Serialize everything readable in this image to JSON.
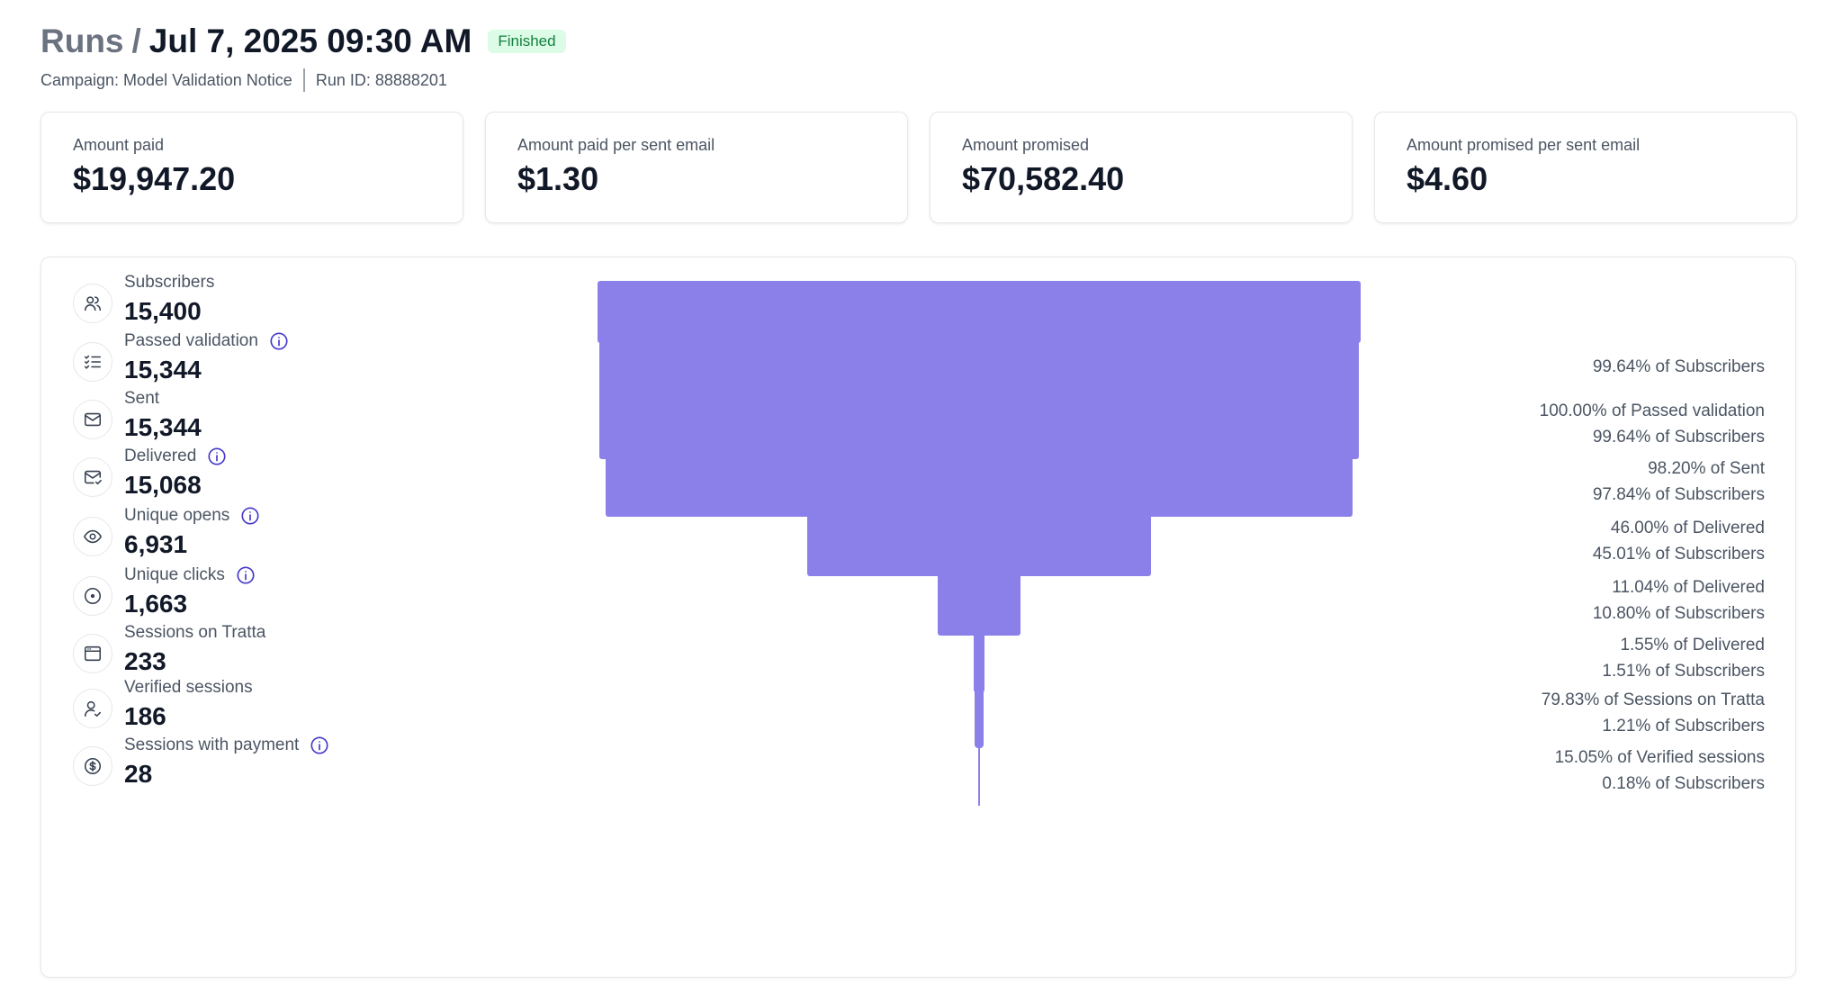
{
  "header": {
    "breadcrumb_root": "Runs",
    "breadcrumb_sep": "/",
    "title": "Jul 7, 2025 09:30 AM",
    "status_badge": "Finished",
    "campaign": "Campaign: Model Validation Notice",
    "run_id": "Run ID: 88888201"
  },
  "cards": [
    {
      "label": "Amount paid",
      "value": "$19,947.20"
    },
    {
      "label": "Amount paid per sent email",
      "value": "$1.30"
    },
    {
      "label": "Amount promised",
      "value": "$70,582.40"
    },
    {
      "label": "Amount promised per sent email",
      "value": "$4.60"
    }
  ],
  "chart_data": {
    "type": "bar",
    "categories": [
      "Subscribers",
      "Passed validation",
      "Sent",
      "Delivered",
      "Unique opens",
      "Unique clicks",
      "Sessions on Tratta",
      "Verified sessions",
      "Sessions with payment"
    ],
    "values": [
      15400,
      15344,
      15344,
      15068,
      6931,
      1663,
      233,
      186,
      28
    ]
  },
  "stages": [
    {
      "label": "Subscribers",
      "value": "15,400",
      "count": 15400,
      "icon": "users-icon",
      "info": false,
      "pct1": "",
      "pct2": ""
    },
    {
      "label": "Passed validation",
      "value": "15,344",
      "count": 15344,
      "icon": "checklist-icon",
      "info": true,
      "pct1": "99.64% of Subscribers",
      "pct2": ""
    },
    {
      "label": "Sent",
      "value": "15,344",
      "count": 15344,
      "icon": "mail-icon",
      "info": false,
      "pct1": "100.00% of Passed validation",
      "pct2": "99.64% of Subscribers"
    },
    {
      "label": "Delivered",
      "value": "15,068",
      "count": 15068,
      "icon": "mail-check-icon",
      "info": true,
      "pct1": "98.20% of Sent",
      "pct2": "97.84% of Subscribers"
    },
    {
      "label": "Unique opens",
      "value": "6,931",
      "count": 6931,
      "icon": "eye-icon",
      "info": true,
      "pct1": "46.00% of Delivered",
      "pct2": "45.01% of Subscribers"
    },
    {
      "label": "Unique clicks",
      "value": "1,663",
      "count": 1663,
      "icon": "click-target-icon",
      "info": true,
      "pct1": "11.04% of Delivered",
      "pct2": "10.80% of Subscribers"
    },
    {
      "label": "Sessions on Tratta",
      "value": "233",
      "count": 233,
      "icon": "browser-window-icon",
      "info": false,
      "pct1": "1.55% of Delivered",
      "pct2": "1.51% of Subscribers"
    },
    {
      "label": "Verified sessions",
      "value": "186",
      "count": 186,
      "icon": "user-check-icon",
      "info": false,
      "pct1": "79.83% of Sessions on Tratta",
      "pct2": "1.21% of Subscribers"
    },
    {
      "label": "Sessions with payment",
      "value": "28",
      "count": 28,
      "icon": "dollar-circle-icon",
      "info": true,
      "pct1": "15.05% of Verified sessions",
      "pct2": "0.18% of Subscribers"
    }
  ],
  "colors": {
    "bar": "#8b7fe9",
    "info_icon": "#4338ca",
    "badge_bg": "#dcfce7",
    "badge_text": "#15803d"
  }
}
